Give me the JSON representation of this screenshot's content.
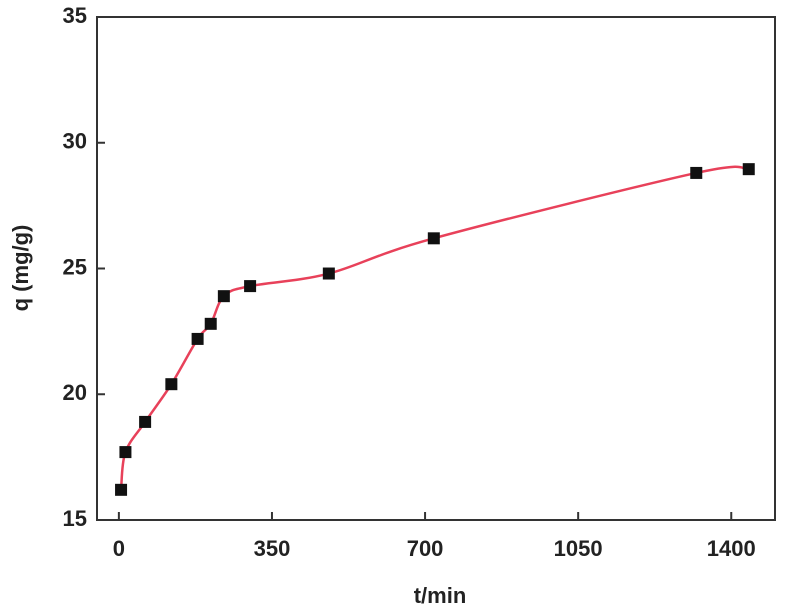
{
  "chart_data": {
    "type": "line",
    "x_label": "t/min",
    "y_label": "q (mg/g)",
    "x": [
      5,
      15,
      60,
      120,
      180,
      210,
      240,
      300,
      480,
      720,
      1320,
      1440
    ],
    "series": [
      {
        "color": "#e8415a",
        "marker_color": "#111111",
        "values": [
          16.2,
          17.7,
          18.9,
          20.4,
          22.2,
          22.8,
          23.9,
          24.3,
          24.8,
          26.2,
          28.8,
          28.95
        ]
      }
    ],
    "xlim": [
      -50,
      1500
    ],
    "xticks": [
      0,
      350,
      700,
      1050,
      1400
    ],
    "ylim": [
      15,
      35
    ],
    "yticks": [
      15,
      20,
      25,
      30,
      35
    ]
  }
}
